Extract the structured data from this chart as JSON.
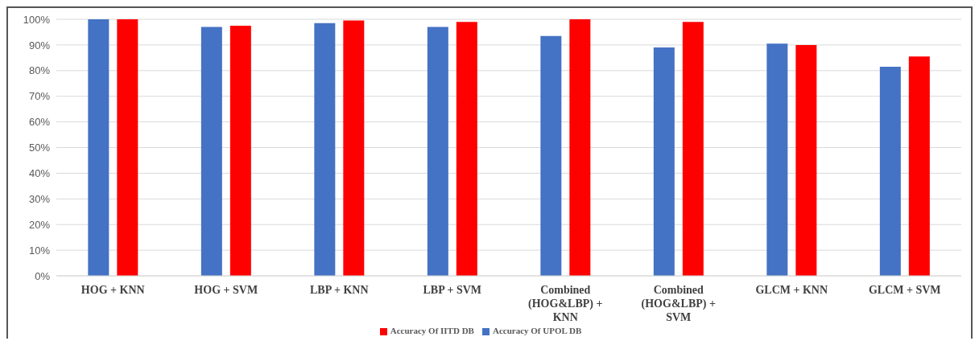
{
  "chart_data": {
    "type": "bar",
    "categories": [
      "HOG + KNN",
      "HOG + SVM",
      "LBP + KNN",
      "LBP + SVM",
      "Combined (HOG&LBP) + KNN",
      "Combined (HOG&LBP) + SVM",
      "GLCM + KNN",
      "GLCM + SVM"
    ],
    "series": [
      {
        "name": "Accuracy Of UPOL DB",
        "color": "#4472c4",
        "values": [
          100,
          97,
          98.5,
          97,
          93.5,
          89,
          90.5,
          81.5
        ]
      },
      {
        "name": "Accuracy Of IITD DB",
        "color": "#ff0000",
        "values": [
          100,
          97.5,
          99.5,
          99,
          100,
          99,
          90,
          85.5
        ]
      }
    ],
    "ylim": [
      0,
      100
    ],
    "yticks": [
      {
        "value": 0,
        "label": "0%"
      },
      {
        "value": 10,
        "label": "10%"
      },
      {
        "value": 20,
        "label": "20%"
      },
      {
        "value": 30,
        "label": "30%"
      },
      {
        "value": 40,
        "label": "40%"
      },
      {
        "value": 50,
        "label": "50%"
      },
      {
        "value": 60,
        "label": "60%"
      },
      {
        "value": 70,
        "label": "70%"
      },
      {
        "value": 80,
        "label": "80%"
      },
      {
        "value": 90,
        "label": "90%"
      },
      {
        "value": 100,
        "label": "100%"
      }
    ],
    "grid": "y",
    "legend": "bottom"
  }
}
